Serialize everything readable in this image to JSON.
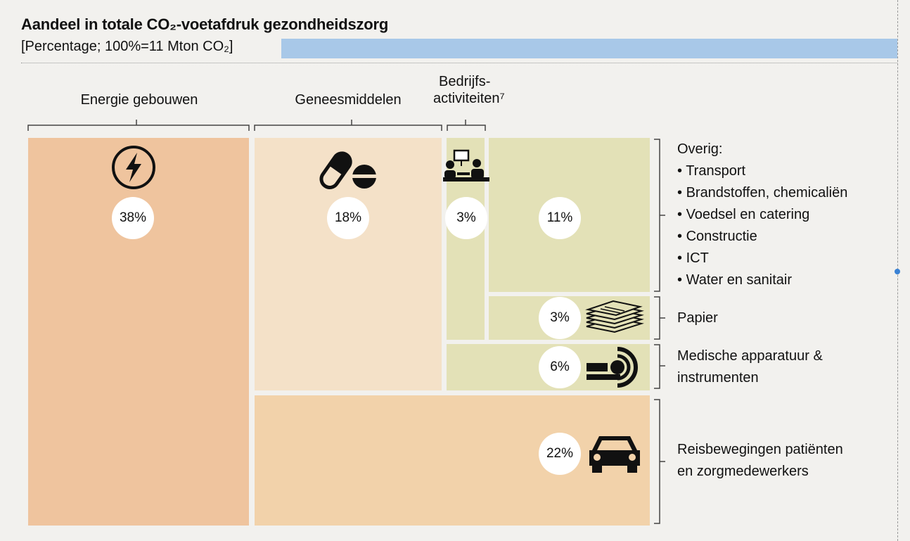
{
  "chart_data": {
    "type": "treemap",
    "title": "Aandeel in totale CO₂-voetafdruk gezondheidszorg",
    "subtitle": "[Percentage; 100%=11 Mton CO₂]",
    "unit": "%",
    "total_label": "100%=11 Mton CO₂",
    "categories": [
      {
        "name": "Energie gebouwen",
        "value": 38,
        "label": "38%",
        "icon": "lightning-icon",
        "color": "#efc49e"
      },
      {
        "name": "Geneesmiddelen",
        "value": 18,
        "label": "18%",
        "icon": "pills-icon",
        "color": "#f4e1c8"
      },
      {
        "name": "Bedrijfs-activiteiten⁷",
        "value": 3,
        "label": "3%",
        "icon": "office-meeting-icon",
        "color": "#e3e1b7"
      },
      {
        "name": "Overig",
        "value": 11,
        "label": "11%",
        "color": "#e3e1b7",
        "items": [
          "Transport",
          "Brandstoffen, chemicaliën",
          "Voedsel en catering",
          "Constructie",
          "ICT",
          "Water en sanitair"
        ]
      },
      {
        "name": "Papier",
        "value": 3,
        "label": "3%",
        "icon": "paper-stack-icon",
        "color": "#e3e1b7"
      },
      {
        "name": "Medische apparatuur & instrumenten",
        "value": 6,
        "label": "6%",
        "icon": "mri-scanner-icon",
        "color": "#e3e1b7"
      },
      {
        "name": "Reisbewegingen patiënten en zorgmedewerkers",
        "value": 22,
        "label": "22%",
        "icon": "car-icon",
        "color": "#f2d2aa"
      }
    ]
  },
  "headers": {
    "energie": "Energie gebouwen",
    "genees": "Geneesmiddelen",
    "bedrijf_1": "Bedrijfs-",
    "bedrijf_2": "activiteiten⁷"
  },
  "side_labels": {
    "overig_title": "Overig:",
    "papier": "Papier",
    "medisch_1": "Medische apparatuur &",
    "medisch_2": "instrumenten",
    "reis_1": "Reisbewegingen patiënten",
    "reis_2": "en zorgmedewerkers"
  }
}
